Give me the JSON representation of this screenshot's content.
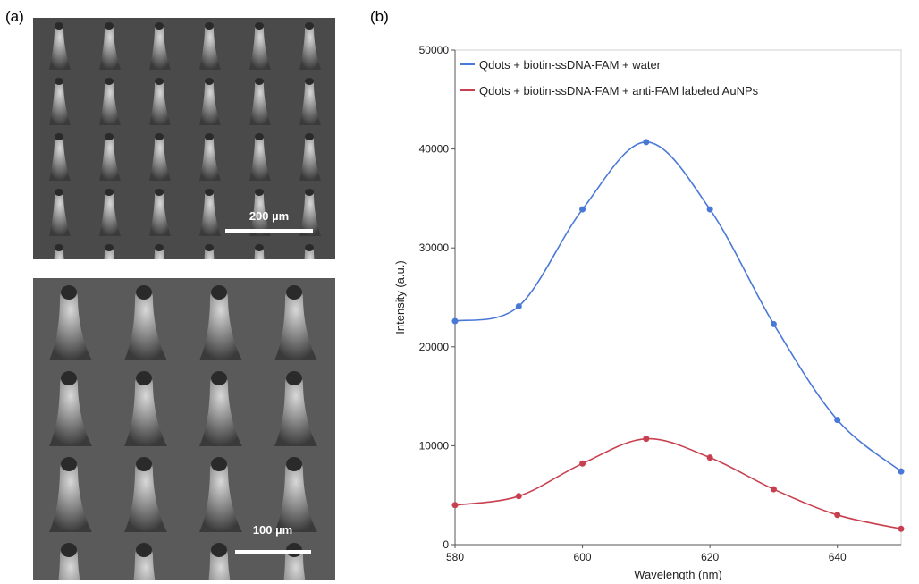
{
  "panels": {
    "a": {
      "label": "(a)",
      "scale_bars": [
        "200 µm",
        "100 µm"
      ]
    },
    "b": {
      "label": "(b)"
    }
  },
  "chart_data": {
    "type": "line",
    "x_label": "Wavelength (nm)",
    "y_label": "Intensity (a.u.)",
    "x": [
      580,
      590,
      600,
      610,
      620,
      630,
      640,
      650
    ],
    "xlim": [
      580,
      650
    ],
    "xticks": [
      580,
      600,
      620,
      640
    ],
    "ylim": [
      0,
      50000
    ],
    "yticks": [
      0,
      10000,
      20000,
      30000,
      40000,
      50000
    ],
    "legend": "top-left",
    "smooth": true,
    "markers": true,
    "series": [
      {
        "name": "Qdots + biotin-ssDNA-FAM + water",
        "color": "#4a78d6",
        "values": [
          22600,
          24100,
          33900,
          40700,
          33900,
          22300,
          12600,
          7400
        ]
      },
      {
        "name": "Qdots + biotin-ssDNA-FAM + anti-FAM labeled AuNPs",
        "color": "#c8404f",
        "values": [
          4000,
          4900,
          8200,
          10700,
          8800,
          5600,
          3000,
          1600
        ]
      }
    ]
  }
}
